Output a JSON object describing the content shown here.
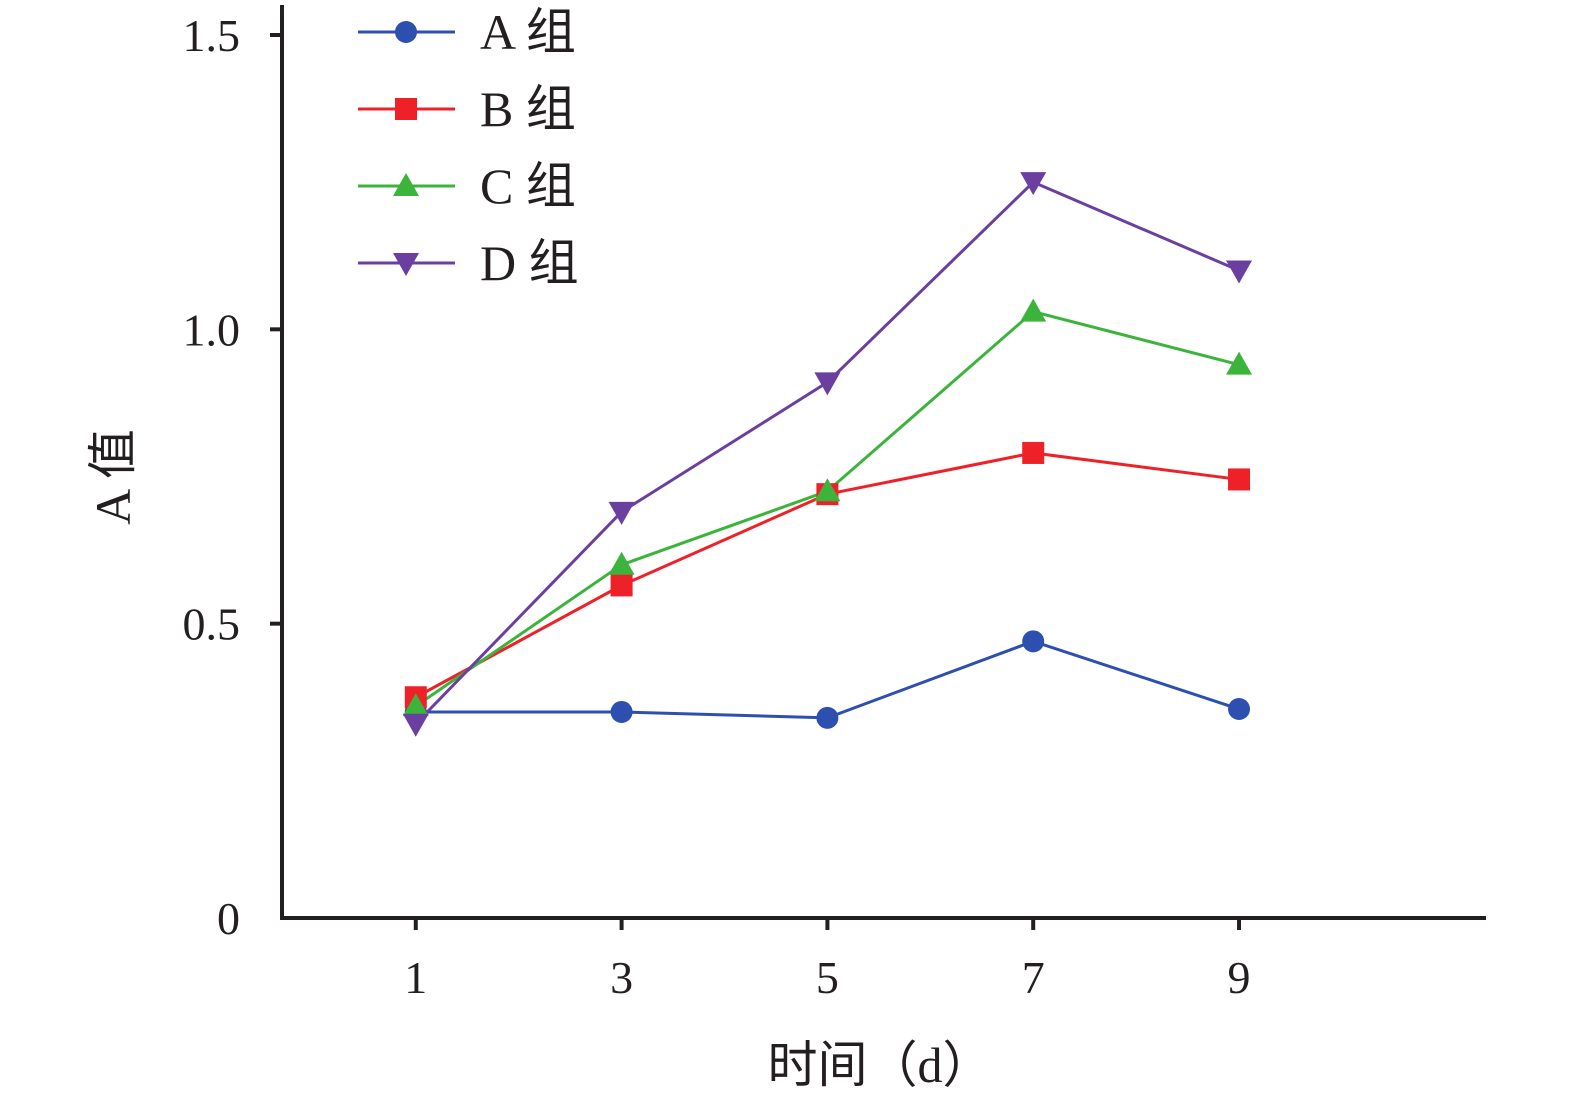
{
  "chart_data": {
    "type": "line",
    "x": [
      1,
      3,
      5,
      7,
      9
    ],
    "x_tick_labels": [
      "1",
      "3",
      "5",
      "7",
      "9"
    ],
    "y_tick_labels": [
      "0",
      "0.5",
      "1.0",
      "1.5"
    ],
    "y_ticks": [
      0,
      0.5,
      1.0,
      1.5
    ],
    "xlim": [
      -0.3,
      11.4
    ],
    "ylim": [
      0,
      1.5
    ],
    "xlabel": "时间（d）",
    "ylabel": "A 值",
    "title": "",
    "legend_position": "top-left",
    "grid": false,
    "series": [
      {
        "name": "A 组",
        "color": "#2d4fb0",
        "marker": "circle",
        "values": [
          0.35,
          0.35,
          0.34,
          0.47,
          0.355
        ]
      },
      {
        "name": "B 组",
        "color": "#ee2028",
        "marker": "square",
        "values": [
          0.375,
          0.565,
          0.72,
          0.79,
          0.745
        ]
      },
      {
        "name": "C 组",
        "color": "#3cb43c",
        "marker": "triangle-up",
        "values": [
          0.36,
          0.6,
          0.725,
          1.03,
          0.94
        ]
      },
      {
        "name": "D 组",
        "color": "#6b3fa0",
        "marker": "triangle-down",
        "values": [
          0.33,
          0.69,
          0.91,
          1.25,
          1.1
        ]
      }
    ]
  }
}
